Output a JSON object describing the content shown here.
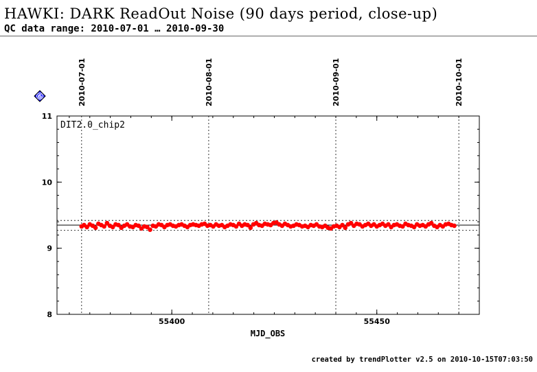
{
  "header": {
    "title": "HAWKI: DARK ReadOut Noise (90 days period, close-up)",
    "subtitle": "QC data range: 2010-07-01 … 2010-09-30"
  },
  "footer": {
    "credit": "created by trendPlotter v2.5 on 2010-10-15T07:03:50"
  },
  "badge": {
    "label": "6",
    "color": "#1a1aff"
  },
  "chart_data": {
    "type": "scatter",
    "panel_label": "DIT2.0_chip2",
    "xlabel": "MJD_OBS",
    "ylabel": "",
    "xlim": [
      55372,
      55475
    ],
    "ylim": [
      8,
      11
    ],
    "x_ticks": [
      55400,
      55450
    ],
    "y_ticks": [
      8,
      9,
      10,
      11
    ],
    "date_markers": [
      {
        "label": "2010-07-01",
        "mjd": 55378
      },
      {
        "label": "2010-08-01",
        "mjd": 55409
      },
      {
        "label": "2010-09-01",
        "mjd": 55440
      },
      {
        "label": "2010-10-01",
        "mjd": 55470
      }
    ],
    "reference_lines": {
      "mean": 9.35,
      "upper": 9.42,
      "lower": 9.27
    },
    "point_color": "#ff0000",
    "series": [
      {
        "x": [
          55378.0,
          55378.6,
          55379.3,
          55380.0,
          55380.7,
          55381.4,
          55382.1,
          55382.8,
          55383.5,
          55384.2,
          55384.9,
          55385.6,
          55386.3,
          55387.0,
          55387.7,
          55388.4,
          55389.1,
          55389.8,
          55390.5,
          55391.2,
          55391.9,
          55392.6,
          55393.3,
          55394.0,
          55394.7,
          55395.4,
          55396.1,
          55396.8,
          55397.5,
          55398.2,
          55398.9,
          55399.6,
          55400.3,
          55401.0,
          55401.7,
          55402.4,
          55403.1,
          55403.8,
          55404.5,
          55405.2,
          55405.9,
          55406.6,
          55407.3,
          55408.0,
          55408.7,
          55409.4,
          55410.1,
          55410.8,
          55411.5,
          55412.2,
          55412.9,
          55413.6,
          55414.3,
          55415.0,
          55415.7,
          55416.4,
          55417.1,
          55417.8,
          55418.5,
          55419.2,
          55419.9,
          55420.6,
          55421.3,
          55422.0,
          55422.7,
          55423.4,
          55424.1,
          55424.8,
          55425.5,
          55426.2,
          55426.9,
          55427.6,
          55428.3,
          55429.0,
          55429.7,
          55430.4,
          55431.1,
          55431.8,
          55432.5,
          55433.2,
          55433.9,
          55434.6,
          55435.3,
          55436.0,
          55436.7,
          55437.4,
          55438.1,
          55438.8,
          55439.5,
          55440.2,
          55440.9,
          55441.6,
          55442.3,
          55443.0,
          55443.7,
          55444.4,
          55445.1,
          55445.8,
          55446.5,
          55447.2,
          55447.9,
          55448.6,
          55449.3,
          55450.0,
          55450.7,
          55451.4,
          55452.1,
          55452.8,
          55453.5,
          55454.2,
          55454.9,
          55455.6,
          55456.3,
          55457.0,
          55457.7,
          55458.4,
          55459.1,
          55459.8,
          55460.5,
          55461.2,
          55461.9,
          55462.6,
          55463.3,
          55464.0,
          55464.7,
          55465.4,
          55466.1,
          55466.8,
          55467.5,
          55468.2,
          55468.9
        ],
        "y": [
          9.33,
          9.35,
          9.32,
          9.36,
          9.34,
          9.31,
          9.37,
          9.35,
          9.33,
          9.38,
          9.34,
          9.32,
          9.36,
          9.35,
          9.31,
          9.34,
          9.36,
          9.33,
          9.32,
          9.35,
          9.34,
          9.3,
          9.33,
          9.32,
          9.28,
          9.34,
          9.33,
          9.36,
          9.35,
          9.32,
          9.35,
          9.36,
          9.34,
          9.33,
          9.35,
          9.36,
          9.34,
          9.32,
          9.35,
          9.36,
          9.35,
          9.34,
          9.36,
          9.37,
          9.34,
          9.35,
          9.33,
          9.36,
          9.34,
          9.35,
          9.32,
          9.34,
          9.36,
          9.35,
          9.33,
          9.37,
          9.34,
          9.36,
          9.35,
          9.31,
          9.36,
          9.38,
          9.35,
          9.34,
          9.37,
          9.36,
          9.35,
          9.38,
          9.39,
          9.36,
          9.34,
          9.37,
          9.35,
          9.33,
          9.34,
          9.36,
          9.35,
          9.33,
          9.34,
          9.32,
          9.35,
          9.34,
          9.36,
          9.33,
          9.32,
          9.34,
          9.31,
          9.3,
          9.33,
          9.34,
          9.32,
          9.35,
          9.31,
          9.36,
          9.38,
          9.34,
          9.37,
          9.36,
          9.33,
          9.35,
          9.37,
          9.34,
          9.36,
          9.33,
          9.35,
          9.37,
          9.34,
          9.36,
          9.32,
          9.35,
          9.36,
          9.34,
          9.33,
          9.37,
          9.35,
          9.34,
          9.32,
          9.36,
          9.34,
          9.35,
          9.33,
          9.36,
          9.38,
          9.34,
          9.32,
          9.35,
          9.33,
          9.36,
          9.37,
          9.35,
          9.34
        ]
      }
    ]
  }
}
